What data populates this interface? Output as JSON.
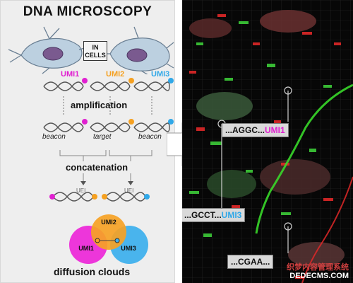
{
  "title": "DNA MICROSCOPY",
  "cells_label": "IN CELLS",
  "umis": [
    {
      "label": "UMI1",
      "color": "#e020d0"
    },
    {
      "label": "UMI2",
      "color": "#f5a020"
    },
    {
      "label": "UMI3",
      "color": "#30a8e8"
    }
  ],
  "steps": {
    "amplification": "amplification",
    "concatenation": "concatenation",
    "diffusion": "diffusion clouds"
  },
  "molecule_labels": {
    "beacon_left": "beacon",
    "target": "target",
    "beacon_right": "beacon"
  },
  "uei_label": "UEI",
  "circles": [
    {
      "label": "UMI1",
      "color": "#ec2bd8"
    },
    {
      "label": "UMI2",
      "color": "#f6a225"
    },
    {
      "label": "UMI3",
      "color": "#3fb0ec"
    }
  ],
  "sequences": [
    {
      "prefix": "...AGGC...",
      "umi": "UMI1",
      "color": "#e020d0"
    },
    {
      "prefix": "...GCCT...",
      "umi": "UMI3",
      "color": "#30a8e8"
    },
    {
      "prefix": "...CGAA...",
      "umi": "",
      "color": "#f5a020"
    }
  ],
  "watermark": {
    "line1": "织梦内容管理系统",
    "line2": "DEDECMS.COM"
  },
  "colors": {
    "arrow": "#ffffff",
    "green": "#3dcc38",
    "red": "#e02828"
  }
}
